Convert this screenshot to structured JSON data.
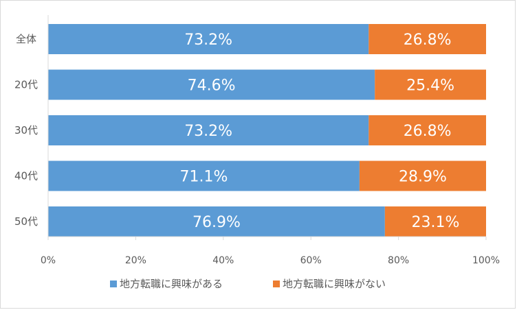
{
  "chart_data": {
    "type": "bar",
    "orientation": "horizontal",
    "stacked": true,
    "categories": [
      "全体",
      "20代",
      "30代",
      "40代",
      "50代"
    ],
    "series": [
      {
        "name": "地方転職に興味がある",
        "values": [
          73.2,
          74.6,
          73.2,
          71.1,
          76.9
        ],
        "labels": [
          "73.2%",
          "74.6%",
          "73.2%",
          "71.1%",
          "76.9%"
        ],
        "color": "#5b9bd5"
      },
      {
        "name": "地方転職に興味がない",
        "values": [
          26.8,
          25.4,
          26.8,
          28.9,
          23.1
        ],
        "labels": [
          "26.8%",
          "25.4%",
          "26.8%",
          "28.9%",
          "23.1%"
        ],
        "color": "#ed7d31"
      }
    ],
    "xlim": [
      0,
      100
    ],
    "xticks": [
      "0%",
      "20%",
      "40%",
      "60%",
      "80%",
      "100%"
    ],
    "grid": false,
    "legend": "bottom"
  }
}
